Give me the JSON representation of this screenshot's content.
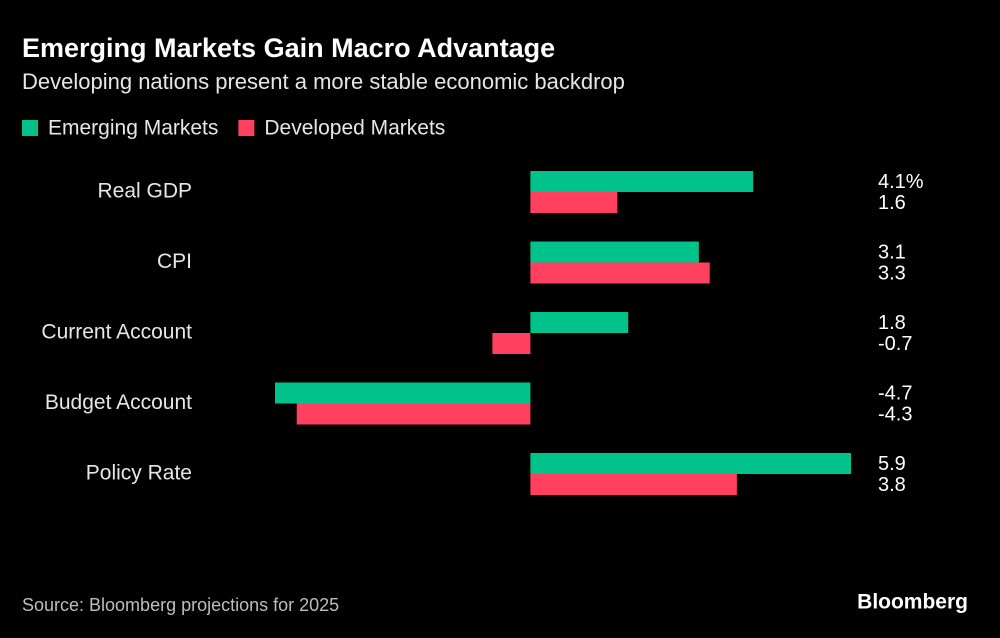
{
  "chart_data": {
    "type": "hbar",
    "title": "Emerging Markets Gain Macro Advantage",
    "subtitle": "Developing nations present a more stable economic backdrop",
    "categories": [
      "Real GDP",
      "CPI",
      "Current Account",
      "Budget Account",
      "Policy Rate"
    ],
    "series": [
      {
        "name": "Emerging Markets",
        "color": "#00c28a",
        "values": [
          4.1,
          3.1,
          1.8,
          -4.7,
          5.9
        ],
        "value_labels": [
          "4.1%",
          "3.1",
          "1.8",
          "-4.7",
          "5.9"
        ]
      },
      {
        "name": "Developed Markets",
        "color": "#ff405e",
        "values": [
          1.6,
          3.3,
          -0.7,
          -4.3,
          3.8
        ]
      }
    ],
    "source": "Source: Bloomberg projections for 2025",
    "brand": "Bloomberg"
  }
}
